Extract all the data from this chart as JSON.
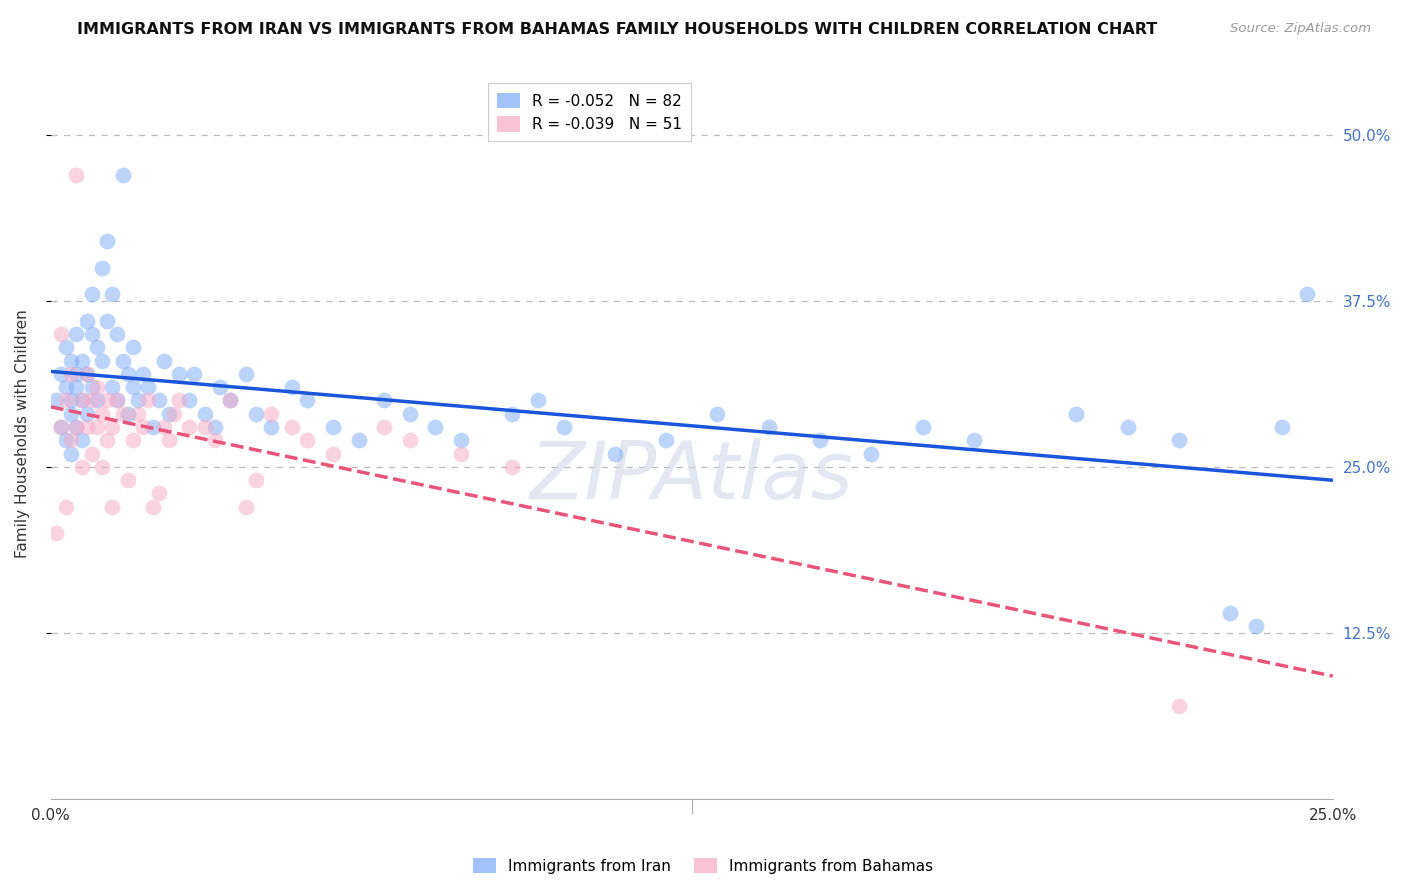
{
  "title": "IMMIGRANTS FROM IRAN VS IMMIGRANTS FROM BAHAMAS FAMILY HOUSEHOLDS WITH CHILDREN CORRELATION CHART",
  "source": "Source: ZipAtlas.com",
  "ylabel": "Family Households with Children",
  "ytick_labels": [
    "50.0%",
    "37.5%",
    "25.0%",
    "12.5%"
  ],
  "ytick_values": [
    0.5,
    0.375,
    0.25,
    0.125
  ],
  "xlim": [
    0.0,
    0.25
  ],
  "ylim": [
    0.0,
    0.55
  ],
  "iran_color": "#7baaf7",
  "bahamas_color": "#f7a8c4",
  "iran_line_color": "#1a56db",
  "bahamas_line_color": "#e8547a",
  "background_color": "#ffffff",
  "grid_color": "#bbbbbb",
  "watermark": "ZIPAtlas",
  "title_fontsize": 11.5,
  "axis_label_fontsize": 11,
  "tick_fontsize": 11,
  "legend_fontsize": 11,
  "iran_R": -0.052,
  "iran_N": 82,
  "bahamas_R": -0.039,
  "bahamas_N": 51,
  "iran_x": [
    0.001,
    0.002,
    0.002,
    0.003,
    0.003,
    0.003,
    0.004,
    0.004,
    0.004,
    0.004,
    0.005,
    0.005,
    0.005,
    0.005,
    0.006,
    0.006,
    0.006,
    0.007,
    0.007,
    0.007,
    0.008,
    0.008,
    0.008,
    0.009,
    0.009,
    0.01,
    0.01,
    0.011,
    0.011,
    0.012,
    0.012,
    0.013,
    0.013,
    0.014,
    0.014,
    0.015,
    0.015,
    0.016,
    0.016,
    0.017,
    0.018,
    0.019,
    0.02,
    0.021,
    0.022,
    0.023,
    0.025,
    0.027,
    0.028,
    0.03,
    0.032,
    0.033,
    0.035,
    0.038,
    0.04,
    0.043,
    0.047,
    0.05,
    0.055,
    0.06,
    0.065,
    0.07,
    0.075,
    0.08,
    0.09,
    0.095,
    0.1,
    0.11,
    0.12,
    0.13,
    0.14,
    0.15,
    0.16,
    0.17,
    0.18,
    0.2,
    0.21,
    0.22,
    0.23,
    0.235,
    0.24,
    0.245
  ],
  "iran_y": [
    0.3,
    0.32,
    0.28,
    0.31,
    0.34,
    0.27,
    0.3,
    0.33,
    0.29,
    0.26,
    0.32,
    0.35,
    0.28,
    0.31,
    0.3,
    0.33,
    0.27,
    0.36,
    0.29,
    0.32,
    0.35,
    0.31,
    0.38,
    0.34,
    0.3,
    0.4,
    0.33,
    0.42,
    0.36,
    0.38,
    0.31,
    0.35,
    0.3,
    0.33,
    0.47,
    0.32,
    0.29,
    0.34,
    0.31,
    0.3,
    0.32,
    0.31,
    0.28,
    0.3,
    0.33,
    0.29,
    0.32,
    0.3,
    0.32,
    0.29,
    0.28,
    0.31,
    0.3,
    0.32,
    0.29,
    0.28,
    0.31,
    0.3,
    0.28,
    0.27,
    0.3,
    0.29,
    0.28,
    0.27,
    0.29,
    0.3,
    0.28,
    0.26,
    0.27,
    0.29,
    0.28,
    0.27,
    0.26,
    0.28,
    0.27,
    0.29,
    0.28,
    0.27,
    0.14,
    0.13,
    0.28,
    0.38
  ],
  "bahamas_x": [
    0.001,
    0.002,
    0.002,
    0.003,
    0.003,
    0.004,
    0.004,
    0.005,
    0.005,
    0.006,
    0.006,
    0.007,
    0.007,
    0.008,
    0.008,
    0.009,
    0.009,
    0.01,
    0.01,
    0.011,
    0.011,
    0.012,
    0.012,
    0.013,
    0.014,
    0.015,
    0.016,
    0.017,
    0.018,
    0.019,
    0.02,
    0.021,
    0.022,
    0.023,
    0.024,
    0.025,
    0.027,
    0.03,
    0.032,
    0.035,
    0.038,
    0.04,
    0.043,
    0.047,
    0.05,
    0.055,
    0.065,
    0.07,
    0.08,
    0.09,
    0.22
  ],
  "bahamas_y": [
    0.2,
    0.35,
    0.28,
    0.3,
    0.22,
    0.32,
    0.27,
    0.28,
    0.47,
    0.3,
    0.25,
    0.28,
    0.32,
    0.26,
    0.3,
    0.28,
    0.31,
    0.25,
    0.29,
    0.27,
    0.3,
    0.28,
    0.22,
    0.3,
    0.29,
    0.24,
    0.27,
    0.29,
    0.28,
    0.3,
    0.22,
    0.23,
    0.28,
    0.27,
    0.29,
    0.3,
    0.28,
    0.28,
    0.27,
    0.3,
    0.22,
    0.24,
    0.29,
    0.28,
    0.27,
    0.26,
    0.28,
    0.27,
    0.26,
    0.25,
    0.07
  ]
}
